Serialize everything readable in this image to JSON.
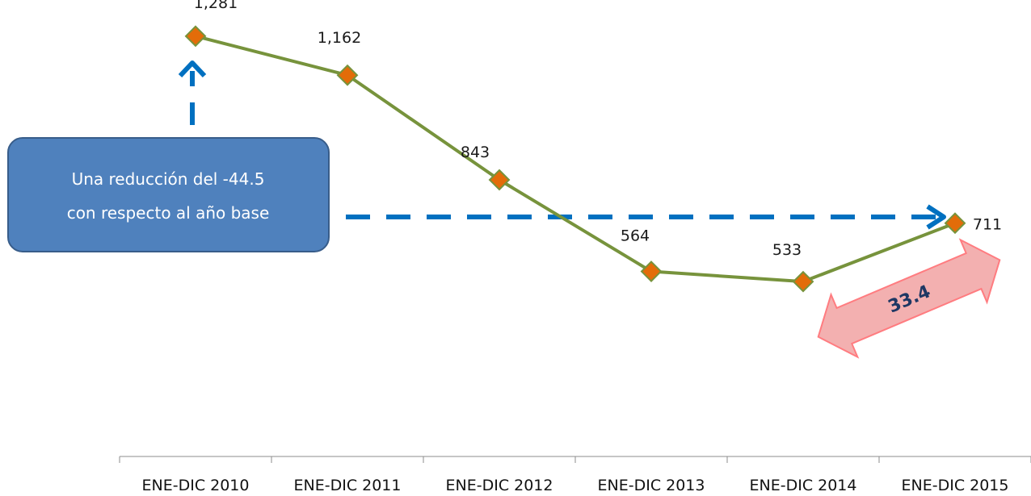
{
  "chart_data": {
    "type": "line",
    "categories": [
      "ENE-DIC 2010",
      "ENE-DIC 2011",
      "ENE-DIC 2012",
      "ENE-DIC 2013",
      "ENE-DIC 2014",
      "ENE-DIC 2015"
    ],
    "series": [
      {
        "values": [
          1281,
          1162,
          843,
          564,
          533,
          711
        ]
      }
    ],
    "data_labels": [
      "1,281",
      "1,162",
      "843",
      "564",
      "533",
      "711"
    ],
    "title": "",
    "xlabel": "",
    "ylabel": "",
    "ylim": [
      0,
      1400
    ],
    "grid": false,
    "legend": "none",
    "colors": {
      "line": "#77933c",
      "marker_fill": "#e36c09",
      "marker_stroke": "#77933c",
      "arrow_blue": "#0070c0",
      "callout_fill": "#4f81bd",
      "callout_stroke": "#385d8a",
      "diff_arrow_fill": "#f2a7a7",
      "diff_arrow_stroke": "#ff7c80"
    },
    "annotations": {
      "callout_lines": [
        "Una reducción del  -44.5",
        "con respecto al año base"
      ],
      "difference_label": "33.4"
    }
  }
}
